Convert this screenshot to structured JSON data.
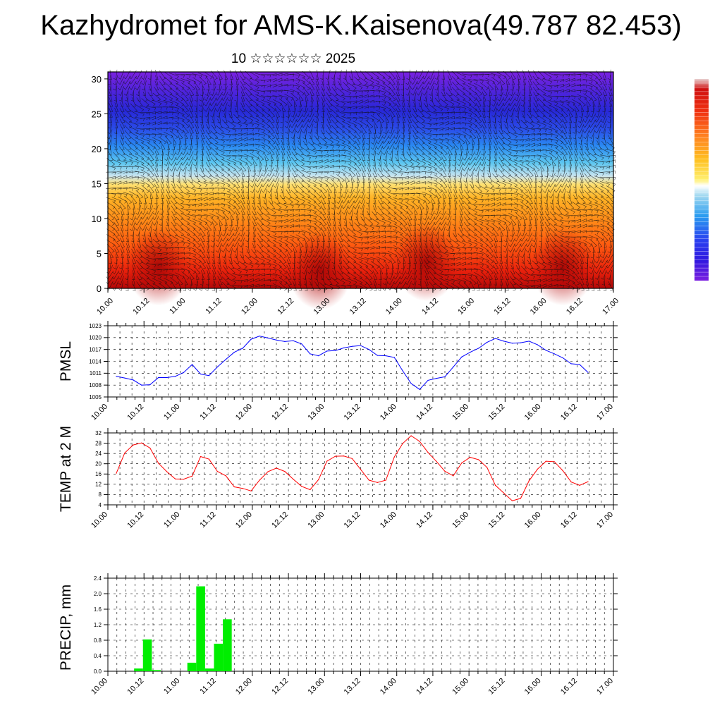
{
  "title": "Kazhydromet for AMS-K.Kaisenova(49.787 82.453)",
  "subtitle": "10 ☆☆☆☆☆☆ 2025",
  "colors": {
    "pmsl": "#0000ff",
    "temp": "#ff0000",
    "precip": "#00ee00",
    "colorbar": [
      "#7b1fe0",
      "#3f1fe0",
      "#2a3ff0",
      "#2c72f2",
      "#2aa8f0",
      "#64d0ec",
      "#c8e6f2",
      "#fff5a0",
      "#ffd230",
      "#ffa41e",
      "#ff6e14",
      "#f02a0e",
      "#c8100a",
      "#e0e0e0"
    ]
  },
  "chart_data": [
    {
      "type": "heatmap",
      "title": "",
      "ylabel": "",
      "ylim": [
        0,
        31
      ],
      "yticks": [
        0,
        5,
        10,
        15,
        20,
        25,
        30
      ],
      "categories": [
        "10.00",
        "10.12",
        "11.00",
        "11.12",
        "12.00",
        "12.12",
        "13.00",
        "13.12",
        "14.00",
        "14.12",
        "15.00",
        "15.12",
        "16.00",
        "16.12",
        "17.00"
      ],
      "overlay": "wind barbs",
      "colorbar_position": "right",
      "colorbar_labels": []
    },
    {
      "type": "line",
      "name": "pmsl",
      "ylabel": "PMSL",
      "ylim": [
        1005,
        1023
      ],
      "yticks": [
        1005,
        1008,
        1011,
        1014,
        1017,
        1020,
        1023
      ],
      "categories": [
        "10.00",
        "10.12",
        "11.00",
        "11.12",
        "12.00",
        "12.12",
        "13.00",
        "13.12",
        "14.00",
        "14.12",
        "15.00",
        "15.12",
        "16.00",
        "16.12",
        "17.00"
      ],
      "x": [
        0,
        3,
        6,
        9,
        12,
        15,
        18,
        21,
        24,
        27,
        30,
        33,
        36,
        39,
        42,
        45,
        48,
        51,
        54,
        57,
        60,
        63,
        66,
        69,
        72,
        75,
        78,
        81,
        84,
        87,
        90,
        93,
        96,
        99,
        102,
        105,
        108,
        111,
        114,
        117,
        120,
        123,
        126,
        129,
        132,
        135,
        138,
        141,
        144,
        147,
        150,
        153,
        156,
        159,
        162,
        165,
        168
      ],
      "values": [
        1010.2,
        1009.8,
        1009.3,
        1008.0,
        1008.1,
        1009.9,
        1009.9,
        1010.2,
        1011.2,
        1013.2,
        1010.8,
        1010.4,
        1012.6,
        1014.5,
        1016.3,
        1017.3,
        1019.6,
        1020.4,
        1019.9,
        1019.4,
        1019.0,
        1019.2,
        1018.4,
        1015.9,
        1015.4,
        1016.6,
        1016.7,
        1017.4,
        1017.8,
        1018.0,
        1017.0,
        1015.5,
        1015.4,
        1015.0,
        1011.6,
        1008.4,
        1006.9,
        1009.2,
        1009.7,
        1010.1,
        1012.6,
        1015.1,
        1016.3,
        1017.3,
        1018.8,
        1019.8,
        1019.1,
        1018.6,
        1018.7,
        1019.1,
        1018.2,
        1016.8,
        1015.9,
        1014.9,
        1013.4,
        1013.2,
        1011.2
      ]
    },
    {
      "type": "line",
      "name": "temp",
      "ylabel": "TEMP at 2 M",
      "ylim": [
        4,
        32
      ],
      "yticks": [
        4,
        8,
        12,
        16,
        20,
        24,
        28,
        32
      ],
      "categories": [
        "10.00",
        "10.12",
        "11.00",
        "11.12",
        "12.00",
        "12.12",
        "13.00",
        "13.12",
        "14.00",
        "14.12",
        "15.00",
        "15.12",
        "16.00",
        "16.12",
        "17.00"
      ],
      "x": [
        0,
        3,
        6,
        9,
        12,
        15,
        18,
        21,
        24,
        27,
        30,
        33,
        36,
        39,
        42,
        45,
        48,
        51,
        54,
        57,
        60,
        63,
        66,
        69,
        72,
        75,
        78,
        81,
        84,
        87,
        90,
        93,
        96,
        99,
        102,
        105,
        108,
        111,
        114,
        117,
        120,
        123,
        126,
        129,
        132,
        135,
        138,
        141,
        144,
        147,
        150,
        153,
        156,
        159,
        162,
        165,
        168
      ],
      "values": [
        16.3,
        24.2,
        27.3,
        28.1,
        26.1,
        20.2,
        16.9,
        14.1,
        14.0,
        15.2,
        22.8,
        21.8,
        17.0,
        15.3,
        11.0,
        10.4,
        9.4,
        13.6,
        16.9,
        18.3,
        17.0,
        14.0,
        11.2,
        9.9,
        13.8,
        21.0,
        22.9,
        23.0,
        22.0,
        17.8,
        13.6,
        12.7,
        13.6,
        22.6,
        27.9,
        30.9,
        28.7,
        24.4,
        20.9,
        17.1,
        15.3,
        20.3,
        22.5,
        21.6,
        18.6,
        11.6,
        8.6,
        5.6,
        6.5,
        13.4,
        17.9,
        21.0,
        20.8,
        17.3,
        12.9,
        11.6,
        13.0
      ]
    },
    {
      "type": "bar",
      "name": "precip",
      "ylabel": "PRECIP, mm",
      "ylim": [
        0,
        2.4
      ],
      "yticks": [
        "0.0",
        "0.4",
        "0.8",
        "1.2",
        "1.6",
        "2.0",
        "2.4"
      ],
      "categories": [
        "10.00",
        "10.12",
        "11.00",
        "11.12",
        "12.00",
        "12.12",
        "13.00",
        "13.12",
        "14.00",
        "14.12",
        "15.00",
        "15.12",
        "16.00",
        "16.12",
        "17.00"
      ],
      "x": [
        6,
        9,
        12,
        24,
        27,
        30,
        33,
        36
      ],
      "values": [
        0.07,
        0.82,
        0.03,
        0.22,
        2.19,
        0.07,
        0.71,
        1.34
      ]
    }
  ]
}
